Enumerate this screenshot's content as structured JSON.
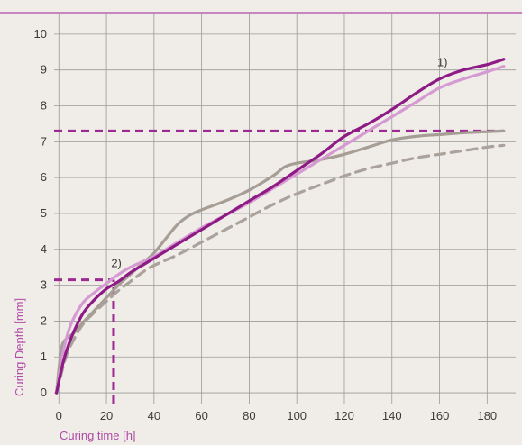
{
  "chart_data": {
    "type": "line",
    "xlabel": "Curing time [h]",
    "ylabel": "Curing Depth [mm]",
    "xlim": [
      -2,
      192
    ],
    "ylim": [
      -0.3,
      10.6
    ],
    "x_ticks": [
      0,
      20,
      40,
      60,
      80,
      100,
      120,
      140,
      160,
      180
    ],
    "y_ticks": [
      0,
      1,
      2,
      3,
      4,
      5,
      6,
      7,
      8,
      9,
      10
    ],
    "grid": true,
    "colors": {
      "background": "#f0ece7",
      "grid": "#9a9a9a",
      "top_rule": "#b04aa8",
      "axis_title": "#b04aa8",
      "dark_magenta": "#8e1a86",
      "light_pink": "#d59ad2",
      "gray": "#a69d95",
      "gray_dashed": "#aaa29b",
      "reference": "#9b2a92"
    },
    "series": [
      {
        "color": "#8e1a86",
        "style": "solid",
        "x": [
          -1,
          2,
          5,
          10,
          15,
          20,
          25,
          30,
          35,
          40,
          50,
          60,
          70,
          80,
          90,
          100,
          110,
          120,
          130,
          140,
          150,
          160,
          170,
          180,
          187
        ],
        "y": [
          0,
          0.9,
          1.5,
          2.2,
          2.6,
          2.9,
          3.1,
          3.35,
          3.55,
          3.75,
          4.15,
          4.55,
          4.95,
          5.35,
          5.75,
          6.2,
          6.65,
          7.15,
          7.5,
          7.9,
          8.35,
          8.75,
          9.0,
          9.15,
          9.3
        ]
      },
      {
        "color": "#d59ad2",
        "style": "solid",
        "x": [
          -1,
          2,
          5,
          10,
          15,
          20,
          25,
          30,
          35,
          40,
          50,
          60,
          70,
          80,
          90,
          100,
          110,
          120,
          130,
          140,
          150,
          160,
          170,
          180,
          187
        ],
        "y": [
          0,
          1.2,
          1.9,
          2.5,
          2.8,
          3.05,
          3.3,
          3.5,
          3.65,
          3.8,
          4.2,
          4.6,
          4.95,
          5.3,
          5.7,
          6.1,
          6.5,
          6.9,
          7.3,
          7.7,
          8.1,
          8.5,
          8.75,
          8.95,
          9.1
        ]
      },
      {
        "color": "#a69d95",
        "style": "solid",
        "x": [
          -1,
          1,
          3,
          6,
          10,
          15,
          20,
          25,
          30,
          35,
          40,
          45,
          50,
          55,
          60,
          70,
          80,
          90,
          95,
          100,
          110,
          120,
          130,
          140,
          150,
          160,
          170,
          180,
          187
        ],
        "y": [
          0,
          1.2,
          1.5,
          1.65,
          1.95,
          2.3,
          2.65,
          3.0,
          3.3,
          3.6,
          3.9,
          4.3,
          4.7,
          4.95,
          5.1,
          5.35,
          5.65,
          6.05,
          6.3,
          6.4,
          6.5,
          6.65,
          6.85,
          7.05,
          7.15,
          7.2,
          7.25,
          7.28,
          7.3
        ]
      },
      {
        "color": "#aaa29b",
        "style": "dashed",
        "x": [
          -1,
          3,
          6,
          10,
          15,
          20,
          25,
          30,
          35,
          40,
          50,
          60,
          70,
          80,
          90,
          100,
          110,
          120,
          130,
          140,
          150,
          160,
          170,
          180,
          187
        ],
        "y": [
          0,
          1.0,
          1.45,
          1.9,
          2.25,
          2.55,
          2.85,
          3.1,
          3.35,
          3.55,
          3.85,
          4.2,
          4.55,
          4.9,
          5.25,
          5.55,
          5.8,
          6.05,
          6.25,
          6.4,
          6.55,
          6.65,
          6.75,
          6.85,
          6.9
        ]
      }
    ],
    "reference_lines": [
      {
        "orientation": "horizontal",
        "y": 7.3,
        "x_from": -2,
        "x_to": 187
      },
      {
        "orientation": "horizontal",
        "y": 3.15,
        "x_from": -2,
        "x_to": 23
      },
      {
        "orientation": "vertical",
        "x": 23,
        "y_from": -0.3,
        "y_to": 3.15
      }
    ],
    "annotations": [
      {
        "text": "1)",
        "x": 159,
        "y": 9.1
      },
      {
        "text": "2)",
        "x": 22,
        "y": 3.5
      }
    ]
  }
}
